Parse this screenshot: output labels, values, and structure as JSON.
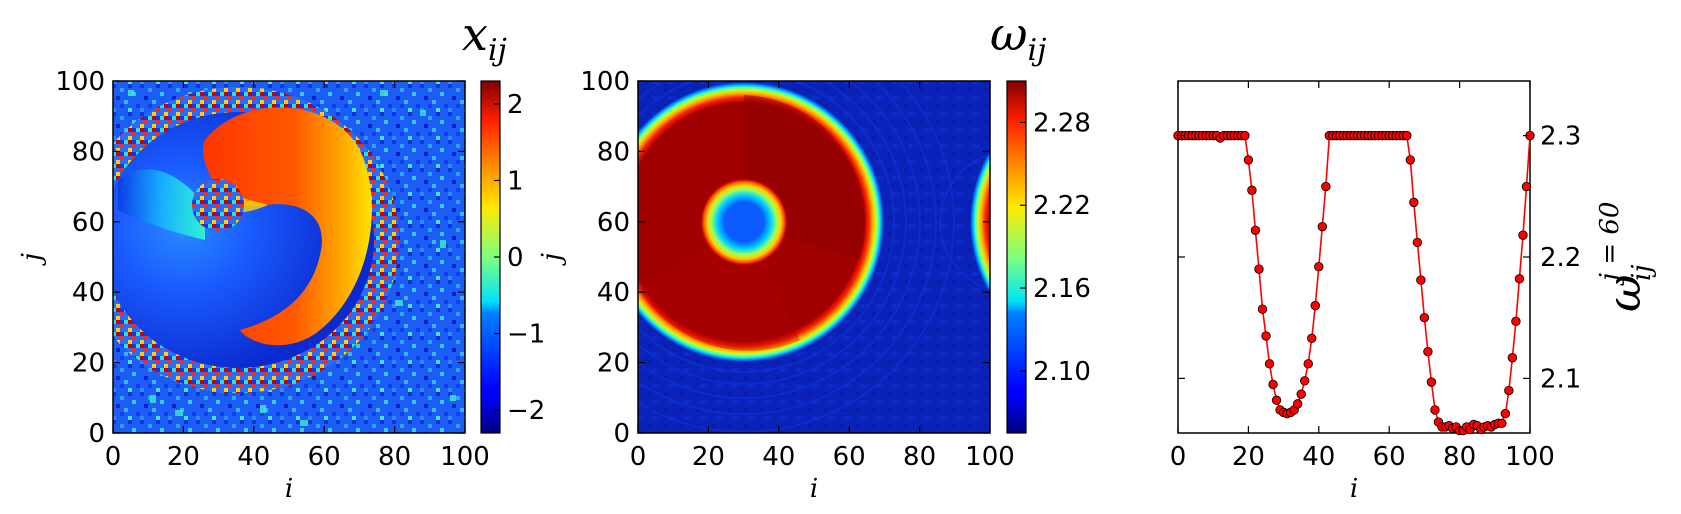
{
  "panels": {
    "phase": {
      "title": "x",
      "title_sub": "ij",
      "xlabel": "i",
      "ylabel": "j",
      "xlim": [
        0,
        100
      ],
      "ylim": [
        0,
        100
      ],
      "xticks": [
        "0",
        "20",
        "40",
        "60",
        "80",
        "100"
      ],
      "yticks": [
        "0",
        "20",
        "40",
        "60",
        "80",
        "100"
      ],
      "colorbar": {
        "range": [
          -2.3,
          2.3
        ],
        "ticks": [
          "−2",
          "−1",
          "0",
          "1",
          "2"
        ],
        "tick_values": [
          -2,
          -1,
          0,
          1,
          2
        ]
      }
    },
    "frequency": {
      "title": "ω",
      "title_sub": "ij",
      "xlabel": "i",
      "ylabel": "j",
      "xlim": [
        0,
        100
      ],
      "ylim": [
        0,
        100
      ],
      "xticks": [
        "0",
        "20",
        "40",
        "60",
        "80",
        "100"
      ],
      "yticks": [
        "0",
        "20",
        "40",
        "60",
        "80",
        "100"
      ],
      "colorbar": {
        "range": [
          2.055,
          2.31
        ],
        "ticks": [
          "2.10",
          "2.16",
          "2.22",
          "2.28"
        ],
        "tick_values": [
          2.1,
          2.16,
          2.22,
          2.28
        ]
      }
    },
    "profile": {
      "xlabel": "i",
      "ylabel_main": "ω",
      "ylabel_sub": "ij",
      "ylabel_sup": "j = 60",
      "xticks": [
        "0",
        "20",
        "40",
        "60",
        "80",
        "100"
      ],
      "yticks": [
        "2.1",
        "2.2",
        "2.3"
      ]
    }
  },
  "chart_data": [
    {
      "type": "heatmap",
      "title": "x_ij",
      "xlabel": "i",
      "ylabel": "j",
      "xlim": [
        0,
        100
      ],
      "ylim": [
        0,
        100
      ],
      "colormap": "jet",
      "color_range": [
        -2.3,
        2.3
      ],
      "description_values": {
        "spiral_core_center": [
          30,
          60
        ],
        "background_level": -1.9
      }
    },
    {
      "type": "heatmap",
      "title": "ω_ij",
      "xlabel": "i",
      "ylabel": "j",
      "xlim": [
        0,
        100
      ],
      "ylim": [
        0,
        100
      ],
      "colormap": "jet",
      "color_range": [
        2.055,
        2.31
      ],
      "regions": {
        "large_disk_center": [
          30,
          60
        ],
        "large_disk_radius": 37,
        "inner_hole_radius": 9,
        "high_value": 2.3,
        "low_value": 2.07
      }
    },
    {
      "type": "line",
      "xlabel": "i",
      "ylabel": "ω_ij^{j=60}",
      "xlim": [
        0,
        100
      ],
      "ylim": [
        2.055,
        2.345
      ],
      "color": "#ff0000",
      "marker": "o",
      "x": [
        0,
        1,
        2,
        3,
        4,
        5,
        6,
        7,
        8,
        9,
        10,
        11,
        12,
        13,
        14,
        15,
        16,
        17,
        18,
        19,
        20,
        21,
        22,
        23,
        24,
        25,
        26,
        27,
        28,
        29,
        30,
        31,
        32,
        33,
        34,
        35,
        36,
        37,
        38,
        39,
        40,
        41,
        42,
        43,
        44,
        45,
        46,
        47,
        48,
        49,
        50,
        51,
        52,
        53,
        54,
        55,
        56,
        57,
        58,
        59,
        60,
        61,
        62,
        63,
        64,
        65,
        66,
        67,
        68,
        69,
        70,
        71,
        72,
        73,
        74,
        75,
        76,
        77,
        78,
        79,
        80,
        81,
        82,
        83,
        84,
        85,
        86,
        87,
        88,
        89,
        90,
        91,
        92,
        93,
        94,
        95,
        96,
        97,
        98,
        99,
        100
      ],
      "y": [
        2.3,
        2.3,
        2.3,
        2.3,
        2.3,
        2.3,
        2.3,
        2.3,
        2.3,
        2.3,
        2.3,
        2.3,
        2.298,
        2.3,
        2.3,
        2.3,
        2.3,
        2.3,
        2.3,
        2.3,
        2.28,
        2.255,
        2.222,
        2.19,
        2.157,
        2.135,
        2.112,
        2.095,
        2.082,
        2.074,
        2.072,
        2.071,
        2.072,
        2.074,
        2.079,
        2.087,
        2.098,
        2.112,
        2.133,
        2.16,
        2.192,
        2.225,
        2.258,
        2.3,
        2.3,
        2.3,
        2.3,
        2.3,
        2.3,
        2.3,
        2.3,
        2.3,
        2.3,
        2.3,
        2.3,
        2.3,
        2.3,
        2.3,
        2.3,
        2.3,
        2.3,
        2.3,
        2.3,
        2.3,
        2.3,
        2.3,
        2.28,
        2.245,
        2.212,
        2.181,
        2.15,
        2.122,
        2.097,
        2.074,
        2.064,
        2.06,
        2.06,
        2.061,
        2.059,
        2.06,
        2.057,
        2.057,
        2.06,
        2.058,
        2.062,
        2.061,
        2.058,
        2.06,
        2.061,
        2.06,
        2.062,
        2.063,
        2.063,
        2.071,
        2.09,
        2.117,
        2.147,
        2.182,
        2.218,
        2.258,
        2.3
      ]
    }
  ]
}
